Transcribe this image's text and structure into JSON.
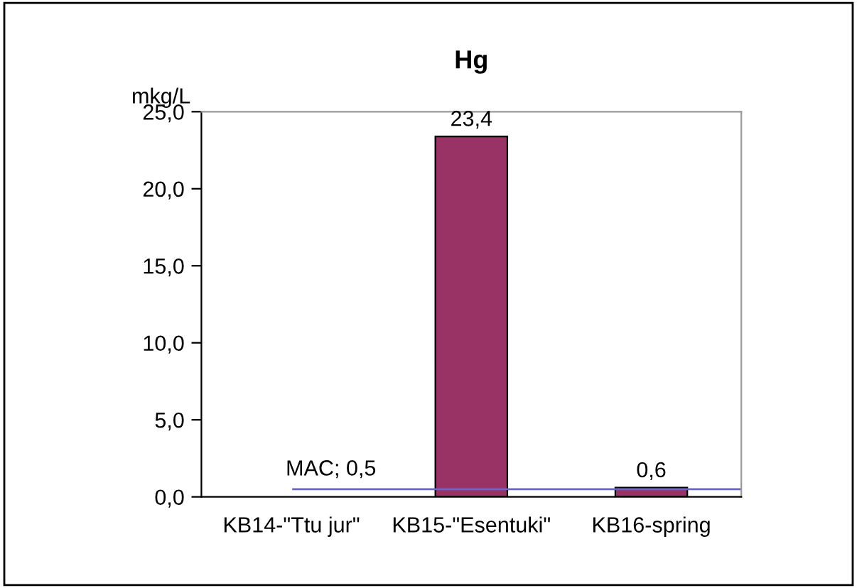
{
  "chart_data": {
    "type": "bar",
    "title": "Hg",
    "ylabel": "mkg/L",
    "categories": [
      "KB14-\"Ttu jur\"",
      "KB15-\"Esentuki\"",
      "KB16-spring"
    ],
    "values": [
      null,
      23.4,
      0.6
    ],
    "color": "#993366",
    "value_labels": [
      null,
      "23,4",
      "0,6"
    ],
    "ylim": [
      0,
      25
    ],
    "yticks": [
      {
        "value": 0,
        "label": "0,0"
      },
      {
        "value": 5,
        "label": "5,0"
      },
      {
        "value": 10,
        "label": "10,0"
      },
      {
        "value": 15,
        "label": "15,0"
      },
      {
        "value": 20,
        "label": "20,0"
      },
      {
        "value": 25,
        "label": "25,0"
      }
    ],
    "ref_lines": [
      {
        "axis": "y",
        "value": 0.5,
        "label": "MAC; 0,5",
        "color": "#6666cc"
      }
    ],
    "grid": false,
    "legend": false
  }
}
